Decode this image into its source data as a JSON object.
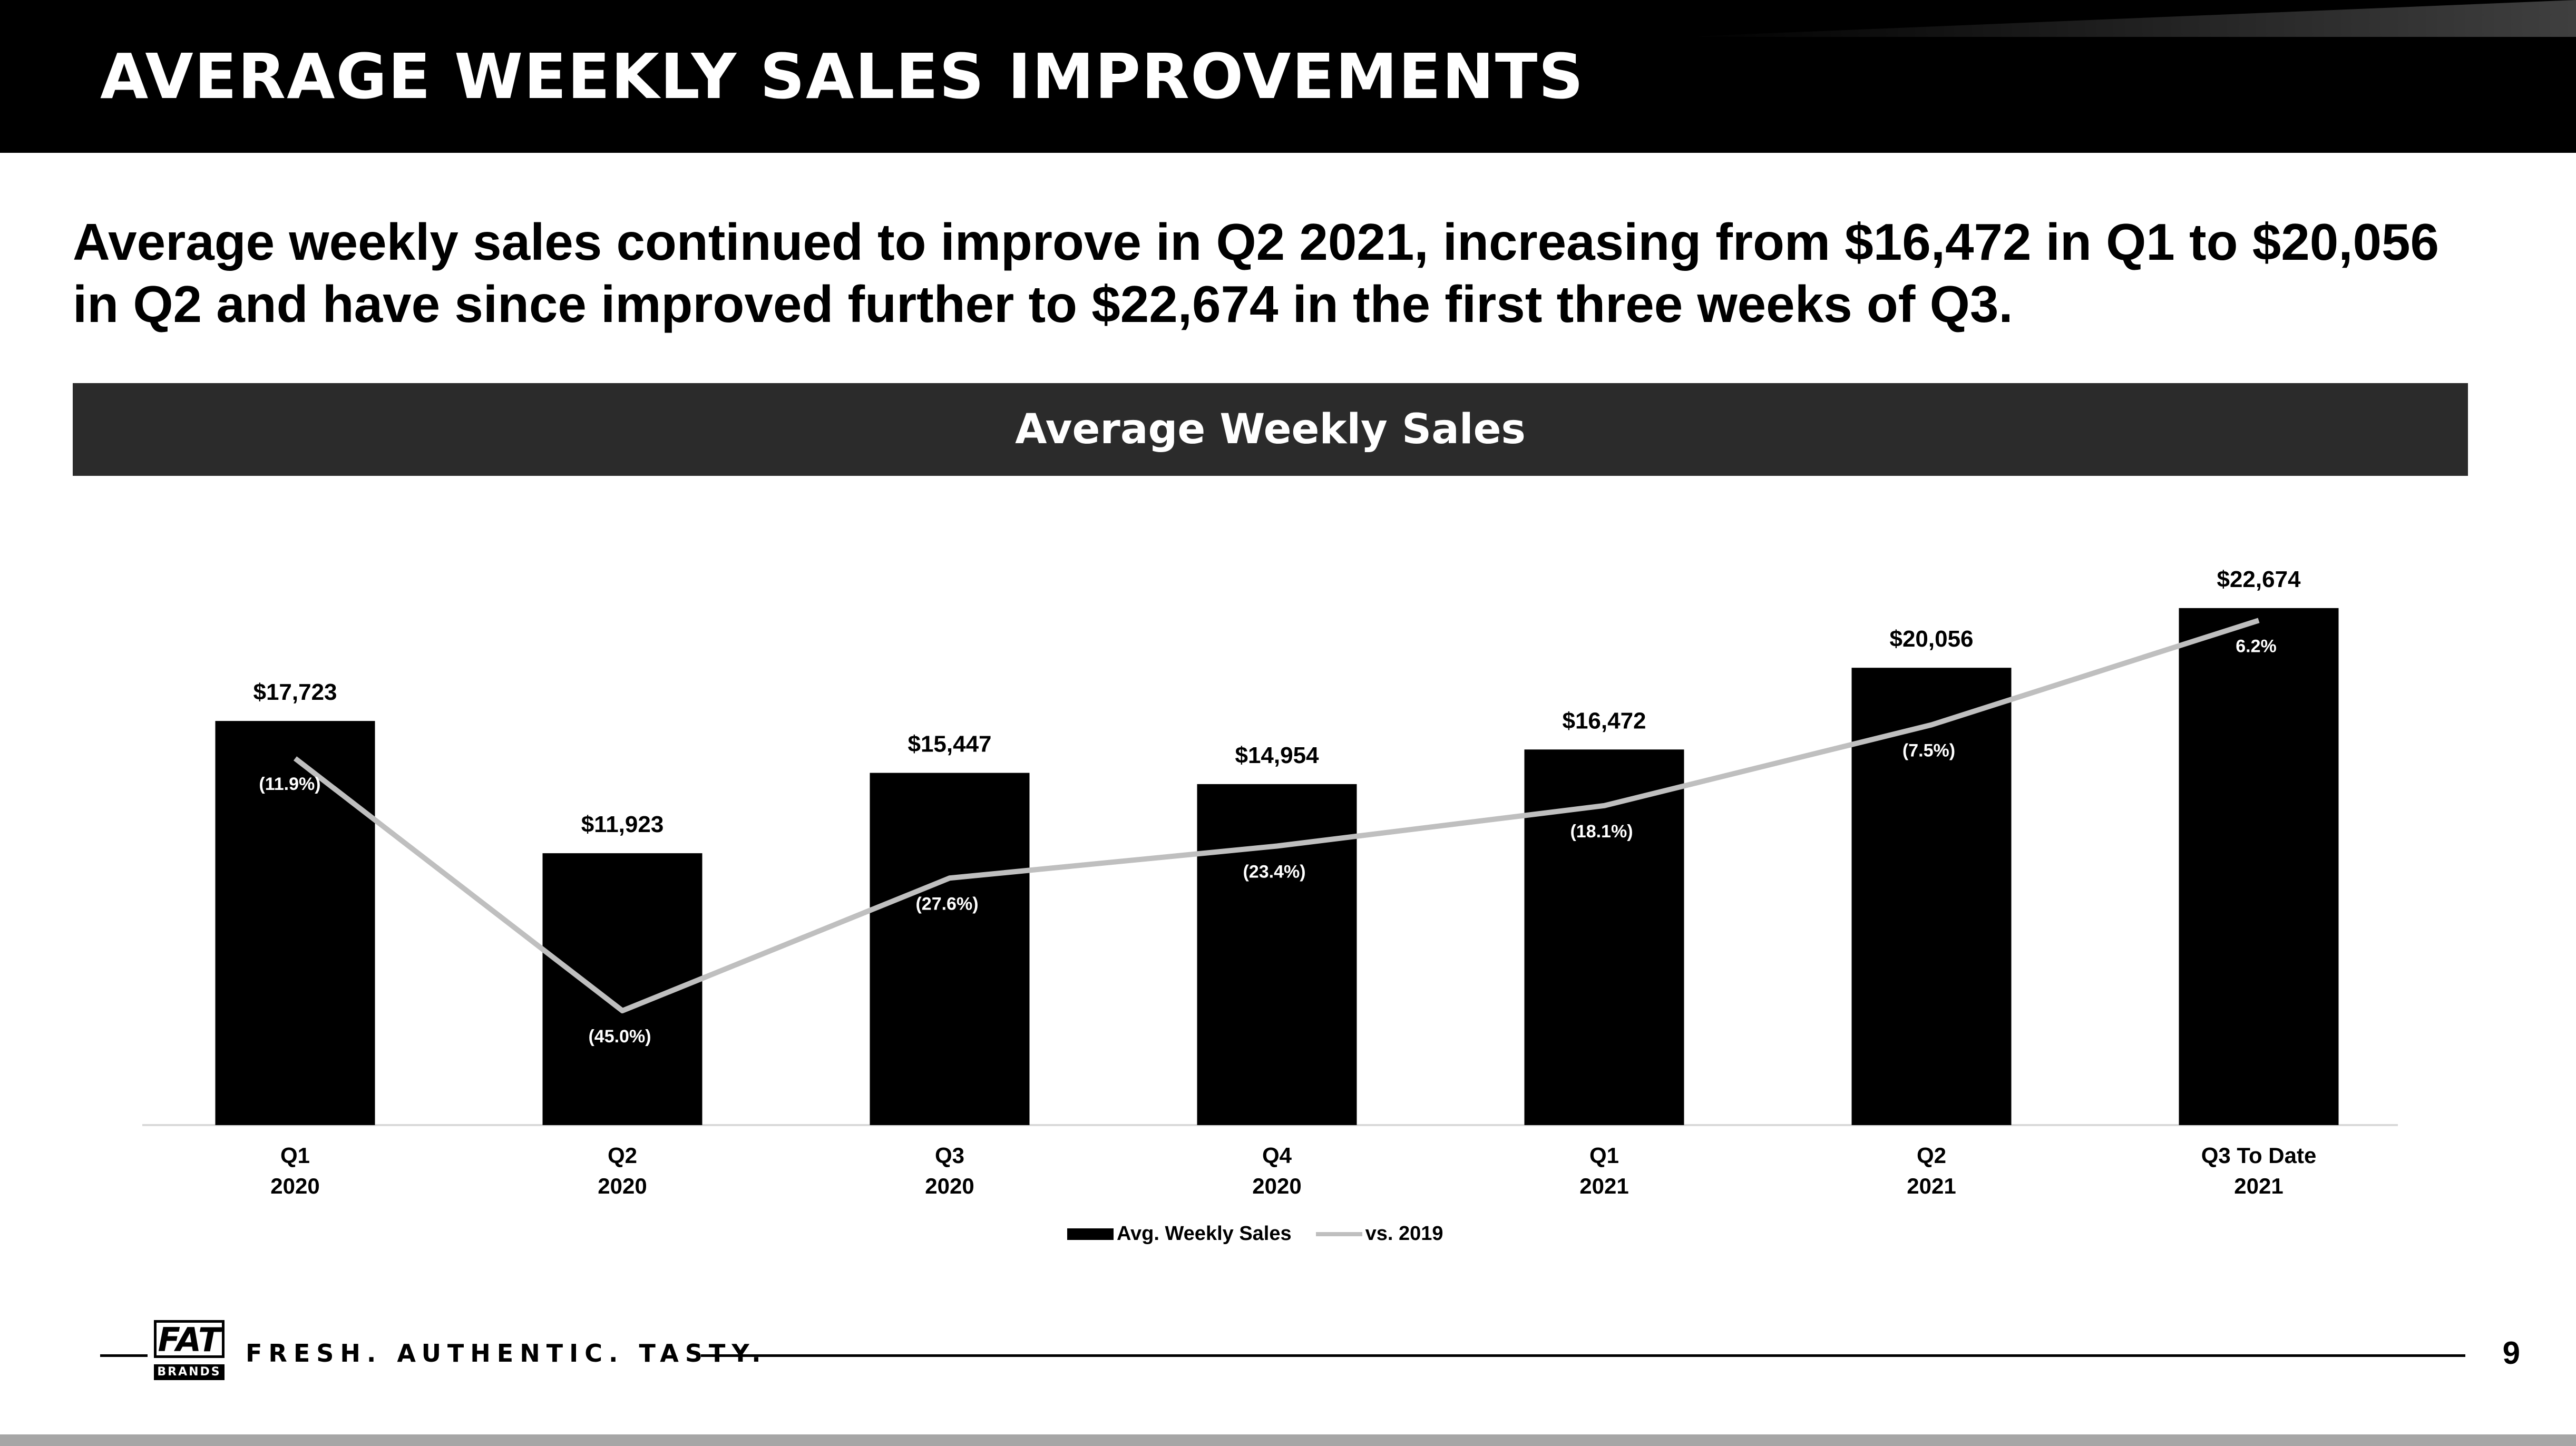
{
  "title": "AVERAGE WEEKLY SALES IMPROVEMENTS",
  "summary": "Average weekly sales continued to improve in Q2 2021, increasing from $16,472 in Q1 to $20,056 in Q2 and have since improved further to $22,674 in the first three weeks of Q3.",
  "chart_header": "Average Weekly Sales",
  "chart_data": {
    "type": "bar",
    "categories": [
      [
        "Q1",
        "2020"
      ],
      [
        "Q2",
        "2020"
      ],
      [
        "Q3",
        "2020"
      ],
      [
        "Q4",
        "2020"
      ],
      [
        "Q1",
        "2021"
      ],
      [
        "Q2",
        "2021"
      ],
      [
        "Q3 To Date",
        "2021"
      ]
    ],
    "series": [
      {
        "name": "Avg. Weekly Sales",
        "type": "bar",
        "values": [
          17723,
          11923,
          15447,
          14954,
          16472,
          20056,
          22674
        ],
        "labels": [
          "$17,723",
          "$11,923",
          "$15,447",
          "$14,954",
          "$16,472",
          "$20,056",
          "$22,674"
        ],
        "color": "#000000"
      },
      {
        "name": "vs. 2019",
        "type": "line",
        "values": [
          -11.9,
          -45.0,
          -27.6,
          -23.4,
          -18.1,
          -7.5,
          6.2
        ],
        "labels": [
          "(11.9%)",
          "(45.0%)",
          "(27.6%)",
          "(23.4%)",
          "(18.1%)",
          "(7.5%)",
          "6.2%"
        ],
        "color": "#bfbfbf"
      }
    ],
    "ylim": [
      0,
      26000
    ],
    "y2lim": [
      -60,
      15
    ],
    "grid": false,
    "legend_position": "bottom-center"
  },
  "legend": {
    "bar_label": "Avg. Weekly Sales",
    "line_label": "vs. 2019"
  },
  "footer": {
    "logo_main": "FAT",
    "logo_sub": "BRANDS",
    "tagline": "FRESH. AUTHENTIC. TASTY.",
    "page_number": "9"
  },
  "colors": {
    "bar": "#000000",
    "line": "#bfbfbf",
    "header_bg": "#2b2b2b",
    "top_bar": "#000000"
  }
}
